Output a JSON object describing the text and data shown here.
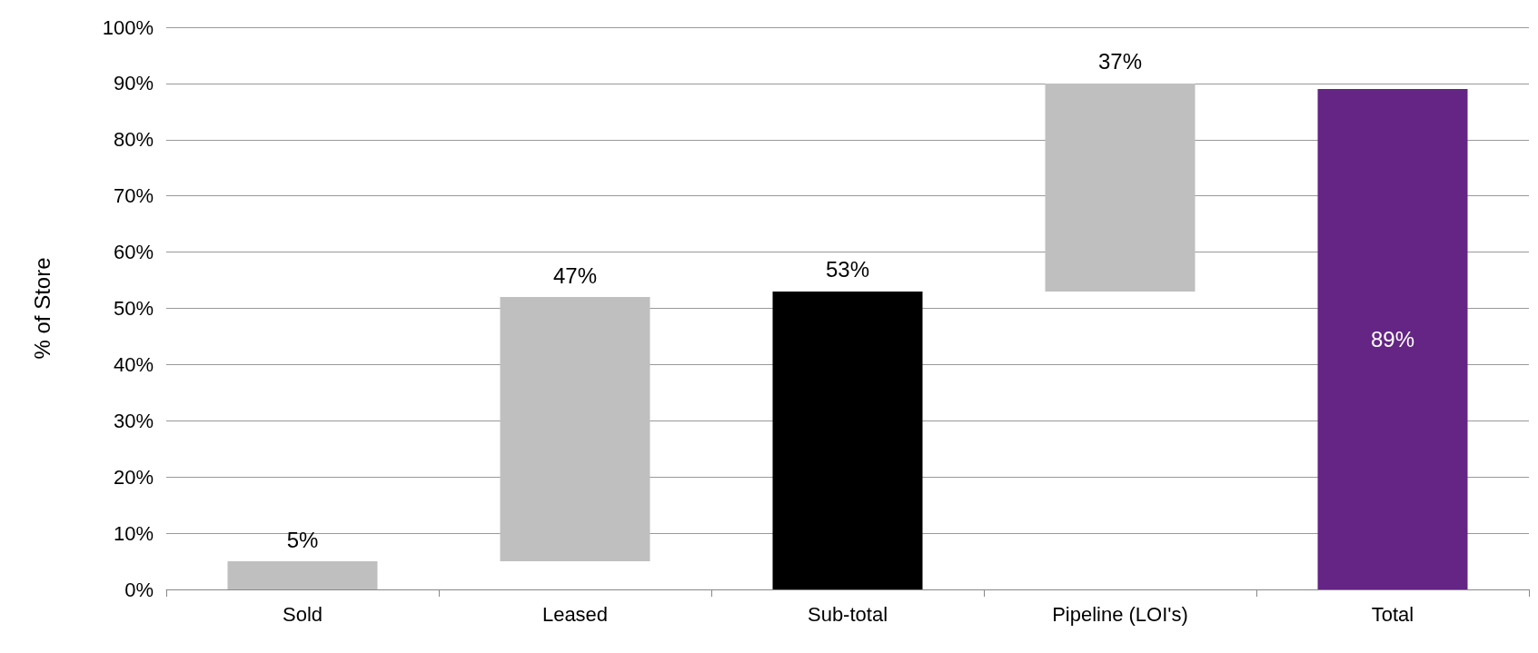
{
  "chart_data": {
    "type": "bar",
    "ylabel": "% of Store",
    "categories": [
      "Sold",
      "Leased",
      "Sub-total",
      "Pipeline (LOI's)",
      "Total"
    ],
    "values": [
      5,
      47,
      53,
      37,
      89
    ],
    "base": [
      0,
      5,
      0,
      53,
      0
    ],
    "colors": [
      "#bfbfbf",
      "#bfbfbf",
      "#000000",
      "#bfbfbf",
      "#642585"
    ],
    "value_labels": [
      "5%",
      "47%",
      "53%",
      "37%",
      "89%"
    ],
    "ylim": [
      0,
      100
    ],
    "yticks": [
      {
        "value": 0,
        "label": "0%"
      },
      {
        "value": 10,
        "label": "10%"
      },
      {
        "value": 20,
        "label": "20%"
      },
      {
        "value": 30,
        "label": "30%"
      },
      {
        "value": 40,
        "label": "40%"
      },
      {
        "value": 50,
        "label": "50%"
      },
      {
        "value": 60,
        "label": "60%"
      },
      {
        "value": 70,
        "label": "70%"
      },
      {
        "value": 80,
        "label": "80%"
      },
      {
        "value": 90,
        "label": "90%"
      },
      {
        "value": 100,
        "label": "100%"
      }
    ],
    "grid": "y"
  }
}
